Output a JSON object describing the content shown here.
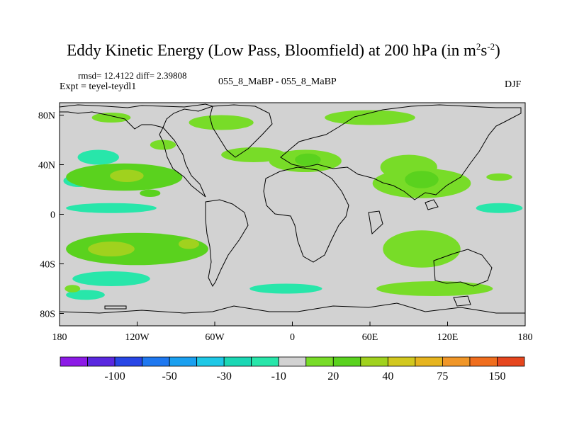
{
  "chart_data": {
    "type": "heatmap",
    "title": "Eddy Kinetic Energy (Low Pass, Bloomfield) at 200 hPa (in m",
    "title_unit_exp1": "2",
    "title_unit_mid": "s",
    "title_unit_exp2": "-2",
    "title_close": ")",
    "stats": "rmsd= 12.4122 diff= 2.39808",
    "experiment": "Expt = teyel-teydl1",
    "comparison": "055_8_MaBP - 055_8_MaBP",
    "season": "DJF",
    "x_ticks": [
      {
        "value": -180,
        "label": "180"
      },
      {
        "value": -120,
        "label": "120W"
      },
      {
        "value": -60,
        "label": "60W"
      },
      {
        "value": 0,
        "label": "0"
      },
      {
        "value": 60,
        "label": "60E"
      },
      {
        "value": 120,
        "label": "120E"
      },
      {
        "value": 180,
        "label": "180"
      }
    ],
    "y_ticks": [
      {
        "value": 80,
        "label": "80N"
      },
      {
        "value": 40,
        "label": "40N"
      },
      {
        "value": 0,
        "label": "0"
      },
      {
        "value": -40,
        "label": "40S"
      },
      {
        "value": -80,
        "label": "80S"
      }
    ],
    "xlim": [
      -180,
      180
    ],
    "ylim": [
      -90,
      90
    ],
    "colorbar": {
      "colors": [
        "#8c1ae6",
        "#5a28e0",
        "#2846e6",
        "#1e78f0",
        "#1aa0f0",
        "#1ec8e6",
        "#1ad7b4",
        "#28e6aa",
        "#d2d2d2",
        "#78dc28",
        "#5ad21e",
        "#a0d21e",
        "#d2c81e",
        "#e6b41e",
        "#f09628",
        "#f06e1e",
        "#e6461e"
      ],
      "labels": [
        {
          "boundary": 2,
          "label": "-100"
        },
        {
          "boundary": 4,
          "label": "-50"
        },
        {
          "boundary": 6,
          "label": "-30"
        },
        {
          "boundary": 8,
          "label": "-10"
        },
        {
          "boundary": 10,
          "label": "20"
        },
        {
          "boundary": 12,
          "label": "40"
        },
        {
          "boundary": 14,
          "label": "75"
        },
        {
          "boundary": 16,
          "label": "150"
        }
      ]
    },
    "anomalies": [
      {
        "lon": -150,
        "lat": 46,
        "rx": 16,
        "ry": 6,
        "level": 7
      },
      {
        "lon": -165,
        "lat": 27,
        "rx": 12,
        "ry": 5,
        "level": 7
      },
      {
        "lon": -130,
        "lat": 30,
        "rx": 45,
        "ry": 11,
        "level": 10
      },
      {
        "lon": -128,
        "lat": 31,
        "rx": 13,
        "ry": 5,
        "level": 11
      },
      {
        "lon": -110,
        "lat": 17,
        "rx": 8,
        "ry": 3,
        "level": 10
      },
      {
        "lon": -140,
        "lat": 5,
        "rx": 35,
        "ry": 4,
        "level": 7
      },
      {
        "lon": -140,
        "lat": 78,
        "rx": 15,
        "ry": 4,
        "level": 9
      },
      {
        "lon": -100,
        "lat": 56,
        "rx": 10,
        "ry": 4,
        "level": 9
      },
      {
        "lon": -120,
        "lat": -28,
        "rx": 55,
        "ry": 13,
        "level": 10
      },
      {
        "lon": -140,
        "lat": -28,
        "rx": 18,
        "ry": 6,
        "level": 11
      },
      {
        "lon": -80,
        "lat": -24,
        "rx": 8,
        "ry": 4,
        "level": 11
      },
      {
        "lon": -140,
        "lat": -52,
        "rx": 30,
        "ry": 6,
        "level": 7
      },
      {
        "lon": -160,
        "lat": -65,
        "rx": 15,
        "ry": 4,
        "level": 7
      },
      {
        "lon": -30,
        "lat": 48,
        "rx": 25,
        "ry": 6,
        "level": 9
      },
      {
        "lon": 10,
        "lat": 43,
        "rx": 28,
        "ry": 9,
        "level": 9
      },
      {
        "lon": 12,
        "lat": 44,
        "rx": 10,
        "ry": 5,
        "level": 10
      },
      {
        "lon": -55,
        "lat": 74,
        "rx": 25,
        "ry": 6,
        "level": 9
      },
      {
        "lon": 60,
        "lat": 78,
        "rx": 35,
        "ry": 6,
        "level": 9
      },
      {
        "lon": 90,
        "lat": 38,
        "rx": 22,
        "ry": 10,
        "level": 9
      },
      {
        "lon": 100,
        "lat": 25,
        "rx": 38,
        "ry": 12,
        "level": 9
      },
      {
        "lon": 100,
        "lat": 28,
        "rx": 13,
        "ry": 7,
        "level": 10
      },
      {
        "lon": 160,
        "lat": 30,
        "rx": 10,
        "ry": 3,
        "level": 9
      },
      {
        "lon": 160,
        "lat": 5,
        "rx": 18,
        "ry": 4,
        "level": 7
      },
      {
        "lon": 100,
        "lat": -28,
        "rx": 30,
        "ry": 15,
        "level": 9
      },
      {
        "lon": -5,
        "lat": -60,
        "rx": 28,
        "ry": 4,
        "level": 7
      },
      {
        "lon": 110,
        "lat": -60,
        "rx": 45,
        "ry": 6,
        "level": 9
      },
      {
        "lon": -170,
        "lat": -60,
        "rx": 6,
        "ry": 3,
        "level": 9
      }
    ]
  }
}
